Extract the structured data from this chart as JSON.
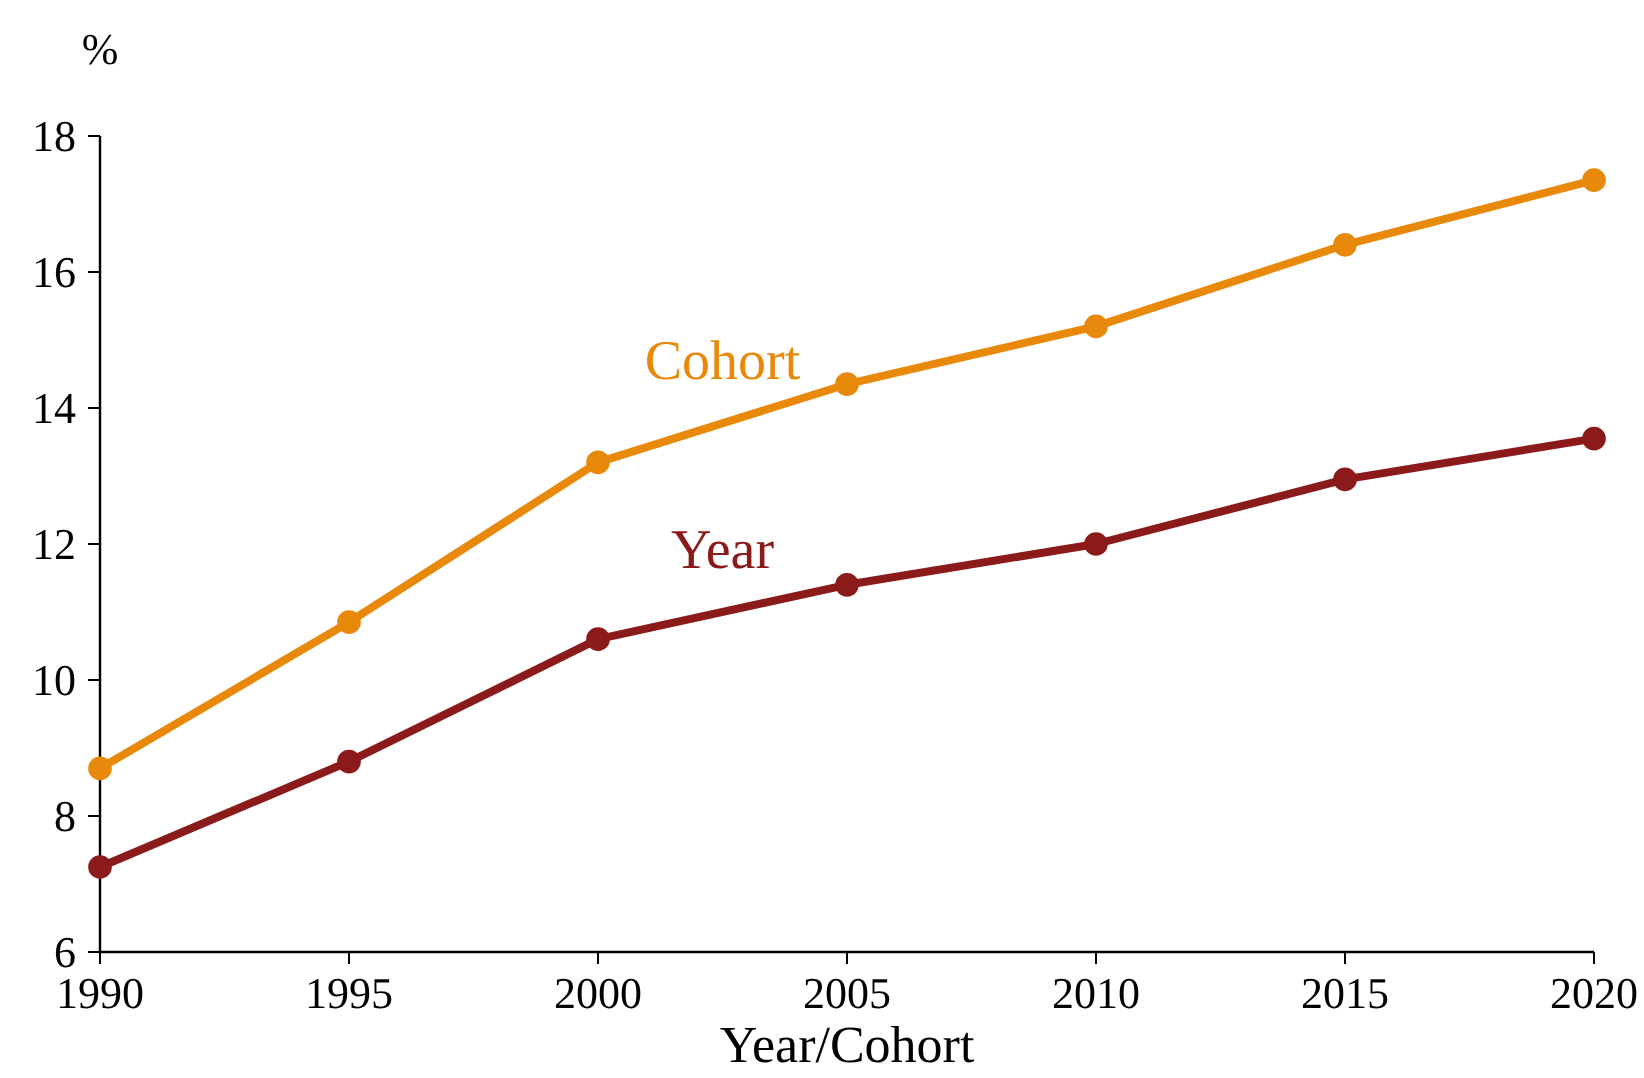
{
  "chart_data": {
    "type": "line",
    "xlabel": "Year/Cohort",
    "ylabel": "%",
    "x": [
      1990,
      1995,
      2000,
      2005,
      2010,
      2015,
      2020
    ],
    "xlim": [
      1990,
      2020
    ],
    "xticks": [
      1990,
      1995,
      2000,
      2005,
      2010,
      2015,
      2020
    ],
    "ylim": [
      6,
      18
    ],
    "yticks": [
      6,
      8,
      10,
      12,
      14,
      16,
      18
    ],
    "marker": "circle",
    "grid": false,
    "series": [
      {
        "name": "Cohort",
        "color": "#e8890c",
        "values": [
          8.7,
          10.85,
          13.2,
          14.35,
          15.2,
          16.4,
          17.35
        ]
      },
      {
        "name": "Year",
        "color": "#8b1a1a",
        "values": [
          7.25,
          8.8,
          10.6,
          11.4,
          12.0,
          12.95,
          13.55
        ]
      }
    ]
  }
}
